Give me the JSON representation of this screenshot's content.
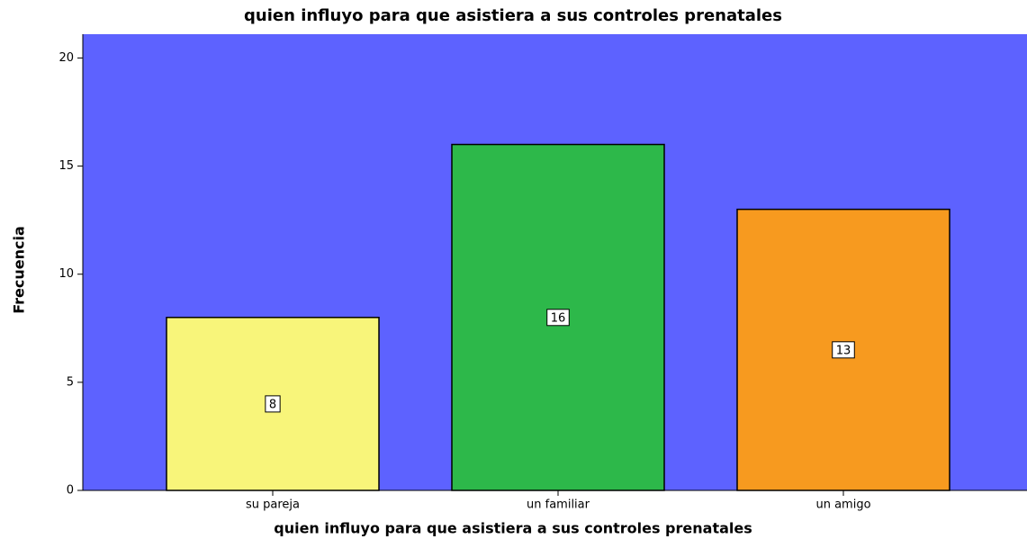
{
  "chart_data": {
    "type": "bar",
    "title": "quien influyo para que asistiera a sus controles prenatales",
    "x_label": "quien influyo para que asistiera a sus controles prenatales",
    "y_label": "Frecuencia",
    "categories": [
      "su pareja",
      "un familiar",
      "un amigo"
    ],
    "values": [
      8,
      16,
      13
    ],
    "colors": [
      "#f8f57a",
      "#2db84a",
      "#f79a1f"
    ],
    "background": "#5d62ff",
    "ylim": [
      0,
      21.1
    ],
    "yticks": [
      0,
      5,
      10,
      15,
      20
    ],
    "grid": false
  }
}
